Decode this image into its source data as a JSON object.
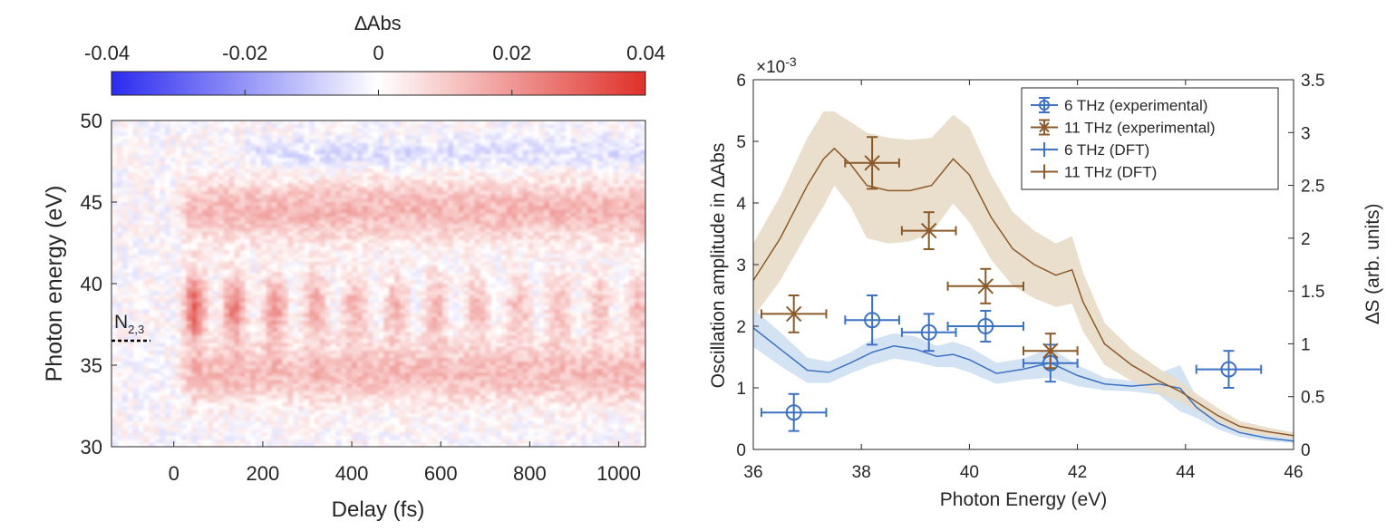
{
  "chart_data": [
    {
      "type": "heatmap",
      "title": "",
      "colorbar": {
        "label": "∆Abs",
        "range": [
          -0.04,
          0.04
        ],
        "ticks": [
          "-0.04",
          "-0.02",
          "0",
          "0.02",
          "0.04"
        ],
        "colors": {
          "negative": "#2b2bf0",
          "zero": "#ffffff",
          "positive": "#e0302a"
        }
      },
      "xlabel": "Delay (fs)",
      "ylabel": "Photon energy (eV)",
      "xlim": [
        -140,
        1060
      ],
      "ylim": [
        30,
        50
      ],
      "xticks": [
        0,
        200,
        400,
        600,
        800,
        1000
      ],
      "yticks": [
        30,
        35,
        40,
        45,
        50
      ],
      "annotation": {
        "text": "N",
        "subscript": "2,3",
        "y": 36.5
      },
      "features": [
        {
          "kind": "band",
          "center_eV": 44.5,
          "width_eV": 2.5,
          "onset_fs": 0,
          "value": 0.014
        },
        {
          "kind": "band",
          "center_eV": 34.5,
          "width_eV": 2.5,
          "onset_fs": 0,
          "value": 0.013
        },
        {
          "kind": "band",
          "center_eV": 48.0,
          "width_eV": 1.2,
          "onset_fs": 150,
          "value": -0.006
        },
        {
          "kind": "oscillation",
          "center_eV": 38.5,
          "onset_fs": 0,
          "period_fs": 91,
          "peak_value": 0.035
        }
      ]
    },
    {
      "type": "scatter",
      "title": "",
      "xlabel": "Photon Energy (eV)",
      "ylabel": "Oscillation amplitude in ∆Abs",
      "ylabel_right": "∆S (arb. units)",
      "xlim": [
        36,
        46
      ],
      "ylim": [
        0,
        6
      ],
      "ylim_right": [
        0,
        3.5
      ],
      "xticks": [
        36,
        38,
        40,
        42,
        44,
        46
      ],
      "yticks": [
        0,
        1,
        2,
        3,
        4,
        5,
        6
      ],
      "yticks_right": [
        "0",
        "0.5",
        "1",
        "1.5",
        "2",
        "2.5",
        "3",
        "3.5"
      ],
      "y_exponent": {
        "base": "×10",
        "power": "-3"
      },
      "legend": {
        "placement": "top-right"
      },
      "series": [
        {
          "name": "6 THz (experimental)",
          "color": "#3d72c2",
          "marker": "circle",
          "x": [
            36.75,
            38.2,
            39.25,
            40.3,
            41.5,
            44.8
          ],
          "y": [
            0.6,
            2.1,
            1.9,
            2.0,
            1.4,
            1.3
          ],
          "xerr": [
            0.6,
            0.5,
            0.5,
            0.7,
            0.5,
            0.6
          ],
          "yerr": [
            0.3,
            0.4,
            0.3,
            0.25,
            0.3,
            0.3
          ]
        },
        {
          "name": "11 THz (experimental)",
          "color": "#8b5a2b",
          "marker": "x",
          "x": [
            36.75,
            38.2,
            39.25,
            40.3,
            41.5
          ],
          "y": [
            2.2,
            4.65,
            3.55,
            2.65,
            1.6
          ],
          "xerr": [
            0.6,
            0.5,
            0.5,
            0.7,
            0.5
          ],
          "yerr": [
            0.3,
            0.42,
            0.3,
            0.28,
            0.28
          ]
        },
        {
          "name": "6 THz (DFT)",
          "color": "#3d72c2",
          "band_color": "#cfe0f3",
          "axis": "right",
          "x": [
            36.0,
            36.5,
            37.0,
            37.4,
            37.8,
            38.2,
            38.6,
            39.0,
            39.4,
            39.7,
            40.0,
            40.5,
            41.0,
            41.5,
            42.0,
            42.5,
            43.0,
            43.5,
            43.9,
            44.2,
            44.6,
            45.0,
            45.5,
            46.0
          ],
          "y": [
            1.15,
            0.95,
            0.75,
            0.73,
            0.82,
            0.92,
            0.98,
            0.95,
            0.88,
            0.9,
            0.85,
            0.72,
            0.76,
            0.82,
            0.7,
            0.62,
            0.6,
            0.62,
            0.58,
            0.4,
            0.25,
            0.16,
            0.11,
            0.08
          ],
          "band": [
            0.18,
            0.16,
            0.12,
            0.1,
            0.1,
            0.12,
            0.12,
            0.12,
            0.1,
            0.12,
            0.12,
            0.1,
            0.1,
            0.14,
            0.1,
            0.06,
            0.05,
            0.1,
            0.22,
            0.1,
            0.06,
            0.04,
            0.03,
            0.02
          ]
        },
        {
          "name": "11 THz (DFT)",
          "color": "#8b5a2b",
          "band_color": "#e8dcc8",
          "axis": "right",
          "x": [
            36.0,
            36.5,
            37.0,
            37.3,
            37.5,
            37.8,
            38.1,
            38.5,
            38.9,
            39.3,
            39.7,
            40.0,
            40.4,
            40.8,
            41.2,
            41.6,
            41.9,
            42.1,
            42.5,
            43.0,
            43.5,
            43.9,
            44.2,
            44.6,
            45.0,
            45.5,
            46.0
          ],
          "y": [
            1.6,
            2.0,
            2.5,
            2.75,
            2.85,
            2.7,
            2.5,
            2.45,
            2.45,
            2.5,
            2.75,
            2.6,
            2.2,
            1.9,
            1.75,
            1.65,
            1.7,
            1.4,
            1.0,
            0.8,
            0.65,
            0.55,
            0.45,
            0.32,
            0.22,
            0.17,
            0.13
          ],
          "band": [
            0.35,
            0.4,
            0.45,
            0.45,
            0.35,
            0.4,
            0.5,
            0.5,
            0.48,
            0.45,
            0.42,
            0.45,
            0.4,
            0.35,
            0.32,
            0.3,
            0.32,
            0.28,
            0.2,
            0.15,
            0.12,
            0.1,
            0.08,
            0.07,
            0.05,
            0.04,
            0.03
          ]
        }
      ]
    }
  ]
}
